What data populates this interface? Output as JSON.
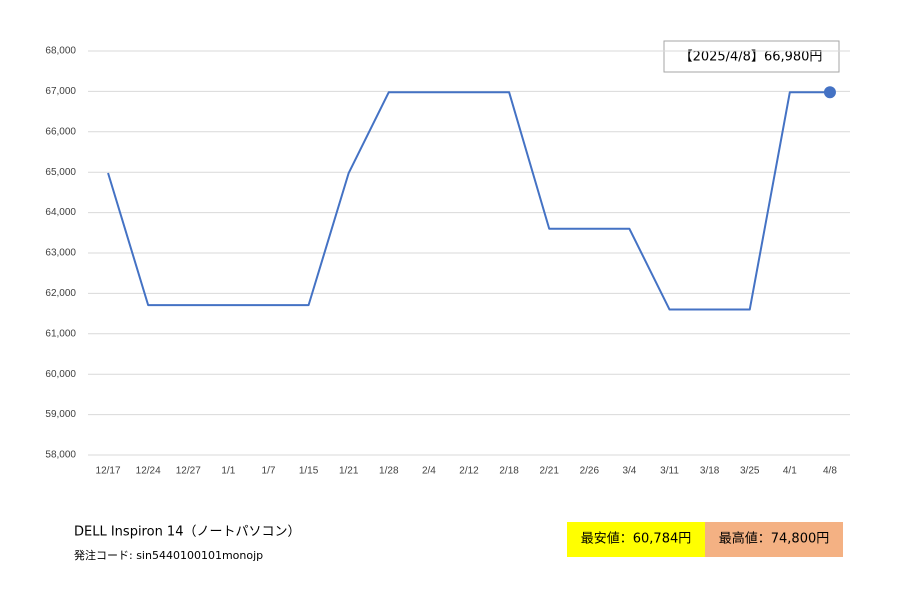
{
  "chart_data": {
    "type": "line",
    "categories": [
      "12/17",
      "12/24",
      "12/27",
      "1/1",
      "1/7",
      "1/15",
      "1/21",
      "1/28",
      "2/4",
      "2/12",
      "2/18",
      "2/21",
      "2/26",
      "3/4",
      "3/11",
      "3/18",
      "3/25",
      "4/1",
      "4/8"
    ],
    "values": [
      64980,
      61710,
      61710,
      61710,
      61710,
      61710,
      64980,
      66980,
      66980,
      66980,
      66980,
      63600,
      63600,
      63600,
      61600,
      61600,
      61600,
      66980,
      66980
    ],
    "color": "#4472c4",
    "ylim": [
      58000,
      68000
    ],
    "yticks": [
      {
        "value": 58000,
        "label": "58,000"
      },
      {
        "value": 59000,
        "label": "59,000"
      },
      {
        "value": 60000,
        "label": "60,000"
      },
      {
        "value": 61000,
        "label": "61,000"
      },
      {
        "value": 62000,
        "label": "62,000"
      },
      {
        "value": 63000,
        "label": "63,000"
      },
      {
        "value": 64000,
        "label": "64,000"
      },
      {
        "value": 65000,
        "label": "65,000"
      },
      {
        "value": 66000,
        "label": "66,000"
      },
      {
        "value": 67000,
        "label": "67,000"
      },
      {
        "value": 68000,
        "label": "68,000"
      }
    ],
    "grid": true,
    "last_point_marker": true,
    "annotation": "【2025/4/8】66,980円",
    "product_name": "DELL Inspiron 14（ノートパソコン）",
    "order_code": "発注コード: sin5440100101monojp",
    "min_price": "最安値：60,784円",
    "max_price": "最高値：74,800円"
  }
}
